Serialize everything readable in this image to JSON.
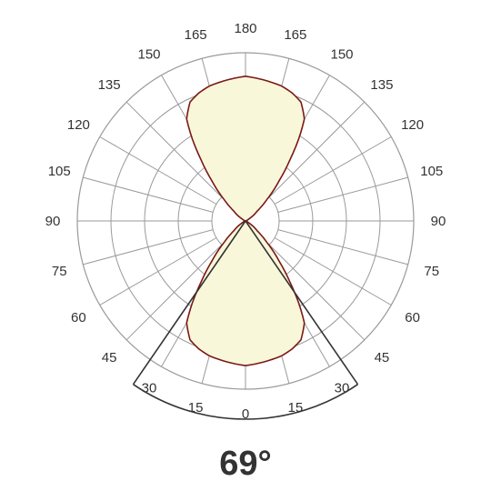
{
  "chart_data": {
    "type": "polar-area",
    "beam_angle_label": "69°",
    "angle_tick_labels": [
      {
        "deg": 180,
        "label": "180"
      },
      {
        "deg": 165,
        "label": "165"
      },
      {
        "deg": -165,
        "label": "165"
      },
      {
        "deg": 150,
        "label": "150"
      },
      {
        "deg": -150,
        "label": "150"
      },
      {
        "deg": 135,
        "label": "135"
      },
      {
        "deg": -135,
        "label": "135"
      },
      {
        "deg": 120,
        "label": "120"
      },
      {
        "deg": -120,
        "label": "120"
      },
      {
        "deg": 105,
        "label": "105"
      },
      {
        "deg": -105,
        "label": "105"
      },
      {
        "deg": 90,
        "label": "90"
      },
      {
        "deg": -90,
        "label": "90"
      },
      {
        "deg": 75,
        "label": "75"
      },
      {
        "deg": -75,
        "label": "75"
      },
      {
        "deg": 60,
        "label": "60"
      },
      {
        "deg": -60,
        "label": "60"
      },
      {
        "deg": 45,
        "label": "45"
      },
      {
        "deg": -45,
        "label": "45"
      },
      {
        "deg": 30,
        "label": "30"
      },
      {
        "deg": -30,
        "label": "30"
      },
      {
        "deg": 15,
        "label": "15"
      },
      {
        "deg": -15,
        "label": "15"
      },
      {
        "deg": 0,
        "label": "0"
      }
    ],
    "grid": {
      "rings": 5,
      "spoke_step_deg": 15
    },
    "beam_angle_deg": 69,
    "intensity_profile": {
      "angle_deg": [
        0,
        5,
        10,
        15,
        20,
        25,
        30,
        33,
        36,
        40,
        45,
        50,
        60,
        75,
        90
      ],
      "relative_intensity": [
        0.86,
        0.85,
        0.84,
        0.83,
        0.81,
        0.78,
        0.7,
        0.58,
        0.45,
        0.31,
        0.18,
        0.09,
        0.02,
        0.0,
        0.0
      ]
    },
    "colors": {
      "fill": "#f8f7d9",
      "outline": "#7a1818",
      "grid": "#9a9a9a",
      "beam_lines": "#333333",
      "text": "#333333"
    }
  }
}
